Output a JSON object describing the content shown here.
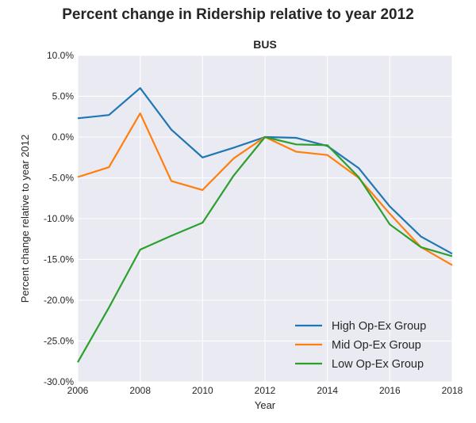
{
  "figure": {
    "suptitle": "Percent change in Ridership relative to year 2012"
  },
  "chart_data": {
    "type": "line",
    "title": "BUS",
    "xlabel": "Year",
    "ylabel": "Percent change relative to year 2012",
    "xlim": [
      2006,
      2018
    ],
    "ylim": [
      -30,
      10
    ],
    "x_ticks": [
      "2006",
      "2008",
      "2010",
      "2012",
      "2014",
      "2016",
      "2018"
    ],
    "y_ticks": [
      "10.0%",
      "5.0%",
      "0.0%",
      "-5.0%",
      "-10.0%",
      "-15.0%",
      "-20.0%",
      "-25.0%",
      "-30.0%"
    ],
    "grid": true,
    "legend_position": "lower-right",
    "x": [
      2006,
      2007,
      2008,
      2009,
      2010,
      2011,
      2012,
      2013,
      2014,
      2015,
      2016,
      2017,
      2018
    ],
    "series": [
      {
        "name": "High Op-Ex Group",
        "color": "#1f77b4",
        "values": [
          2.3,
          2.7,
          6.0,
          0.9,
          -2.5,
          -1.3,
          0.0,
          -0.1,
          -1.1,
          -3.8,
          -8.5,
          -12.2,
          -14.3
        ]
      },
      {
        "name": "Mid Op-Ex Group",
        "color": "#ff7f0e",
        "values": [
          -4.9,
          -3.7,
          2.9,
          -5.4,
          -6.5,
          -2.6,
          0.0,
          -1.8,
          -2.2,
          -5.0,
          -9.4,
          -13.5,
          -15.7
        ]
      },
      {
        "name": "Low Op-Ex Group",
        "color": "#2ca02c",
        "values": [
          -27.6,
          -20.9,
          -13.8,
          -12.1,
          -10.5,
          -4.7,
          0.0,
          -0.9,
          -1.0,
          -4.9,
          -10.7,
          -13.5,
          -14.6
        ]
      }
    ]
  }
}
